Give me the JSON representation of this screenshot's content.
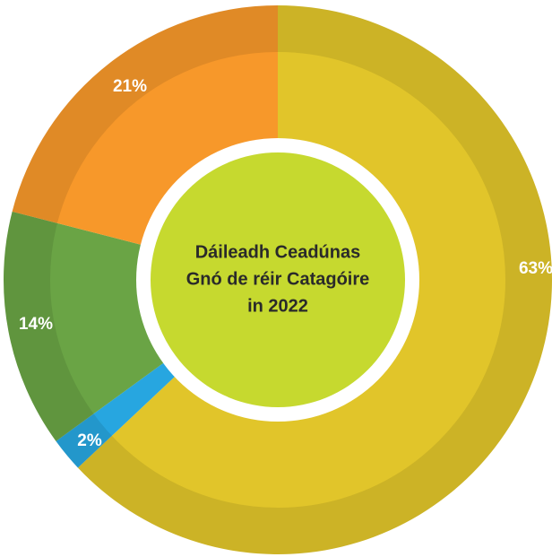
{
  "chart_data": {
    "type": "donut",
    "title_lines": [
      "Dáileadh Ceadúnas",
      "Gnó de réir Catagóire",
      "in 2022"
    ],
    "values": [
      63,
      2,
      14,
      21
    ],
    "value_labels": [
      "63%",
      "2%",
      "14%",
      "21%"
    ],
    "colors": [
      "#e1c52a",
      "#27a6e0",
      "#6aa445",
      "#f7982a"
    ],
    "center_color": "#c6d92f"
  }
}
